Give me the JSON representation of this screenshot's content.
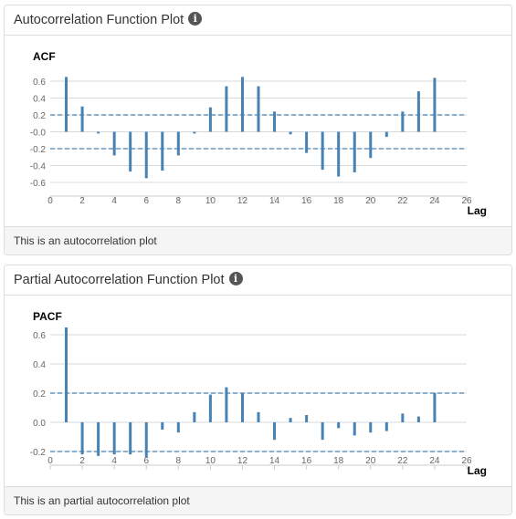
{
  "panels": [
    {
      "title": "Autocorrelation Function Plot",
      "footer": "This is an autocorrelation plot",
      "info_icon": "info-icon"
    },
    {
      "title": "Partial Autocorrelation Function Plot",
      "footer": "This is an partial autocorrelation plot",
      "info_icon": "info-icon"
    }
  ],
  "chart_data": [
    {
      "type": "bar",
      "title": "ACF",
      "xlabel": "Lag",
      "ylabel": "",
      "xlim": [
        0,
        26
      ],
      "ylim": [
        -0.7,
        0.7
      ],
      "x_ticks": [
        0,
        2,
        4,
        6,
        8,
        10,
        12,
        14,
        16,
        18,
        20,
        22,
        24,
        26
      ],
      "y_ticks": [
        0.6,
        0.4,
        0.2,
        0.0,
        -0.2,
        -0.4,
        -0.6
      ],
      "y_tick_labels": [
        "0.6",
        "0.4",
        "0.2",
        "-0.0",
        "-0.2",
        "-0.4",
        "-0.6"
      ],
      "confidence_band": [
        -0.2,
        0.2
      ],
      "lags": [
        1,
        2,
        3,
        4,
        5,
        6,
        7,
        8,
        9,
        10,
        11,
        12,
        13,
        14,
        15,
        16,
        17,
        18,
        19,
        20,
        21,
        22,
        23,
        24
      ],
      "values": [
        0.65,
        0.3,
        -0.02,
        -0.28,
        -0.47,
        -0.55,
        -0.46,
        -0.28,
        -0.02,
        0.29,
        0.54,
        0.65,
        0.54,
        0.24,
        -0.03,
        -0.25,
        -0.45,
        -0.53,
        -0.48,
        -0.31,
        -0.06,
        0.24,
        0.48,
        0.64
      ],
      "bar_color": "#4682b4",
      "grid": true
    },
    {
      "type": "bar",
      "title": "PACF",
      "xlabel": "Lag",
      "ylabel": "",
      "xlim": [
        0,
        26
      ],
      "ylim": [
        -0.3,
        0.7
      ],
      "x_ticks": [
        0,
        2,
        4,
        6,
        8,
        10,
        12,
        14,
        16,
        18,
        20,
        22,
        24,
        26
      ],
      "y_ticks": [
        0.6,
        0.4,
        0.2,
        0.0,
        -0.2
      ],
      "y_tick_labels": [
        "0.6",
        "0.4",
        "0.2",
        "0.0",
        "-0.2"
      ],
      "confidence_band": [
        -0.2,
        0.2
      ],
      "lags": [
        1,
        2,
        3,
        4,
        5,
        6,
        7,
        8,
        9,
        10,
        11,
        12,
        13,
        14,
        15,
        16,
        17,
        18,
        19,
        20,
        21,
        22,
        23,
        24
      ],
      "values": [
        0.65,
        -0.22,
        -0.23,
        -0.22,
        -0.22,
        -0.24,
        -0.05,
        -0.07,
        0.07,
        0.19,
        0.24,
        0.2,
        0.07,
        -0.12,
        0.03,
        0.05,
        -0.12,
        -0.04,
        -0.09,
        -0.07,
        -0.06,
        0.06,
        0.04,
        0.2
      ],
      "bar_color": "#4682b4",
      "grid": true
    }
  ]
}
